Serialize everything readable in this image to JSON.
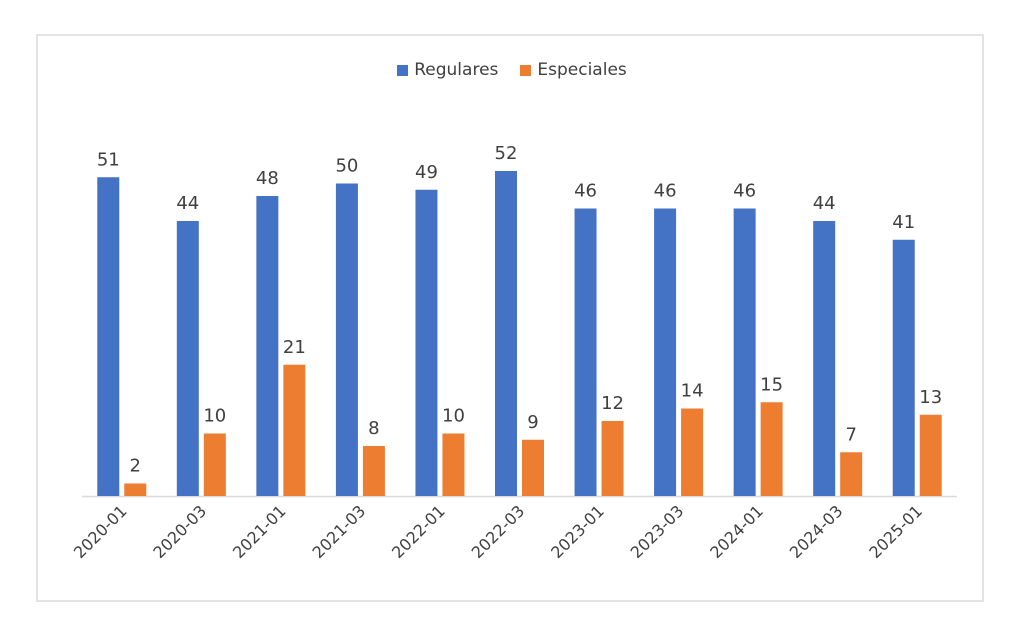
{
  "chart_data": {
    "type": "bar",
    "title": "",
    "xlabel": "",
    "ylabel": "",
    "ylim": [
      0,
      56
    ],
    "grid": false,
    "legend_position": "top-center",
    "categories": [
      "2020-01",
      "2020-03",
      "2021-01",
      "2021-03",
      "2022-01",
      "2022-03",
      "2023-01",
      "2023-03",
      "2024-01",
      "2024-03",
      "2025-01"
    ],
    "series": [
      {
        "name": "Regulares",
        "color": "#4472C4",
        "values": [
          51,
          44,
          48,
          50,
          49,
          52,
          46,
          46,
          46,
          44,
          41
        ]
      },
      {
        "name": "Especiales",
        "color": "#ED7D31",
        "values": [
          2,
          10,
          21,
          8,
          10,
          9,
          12,
          14,
          15,
          7,
          13
        ]
      }
    ]
  }
}
